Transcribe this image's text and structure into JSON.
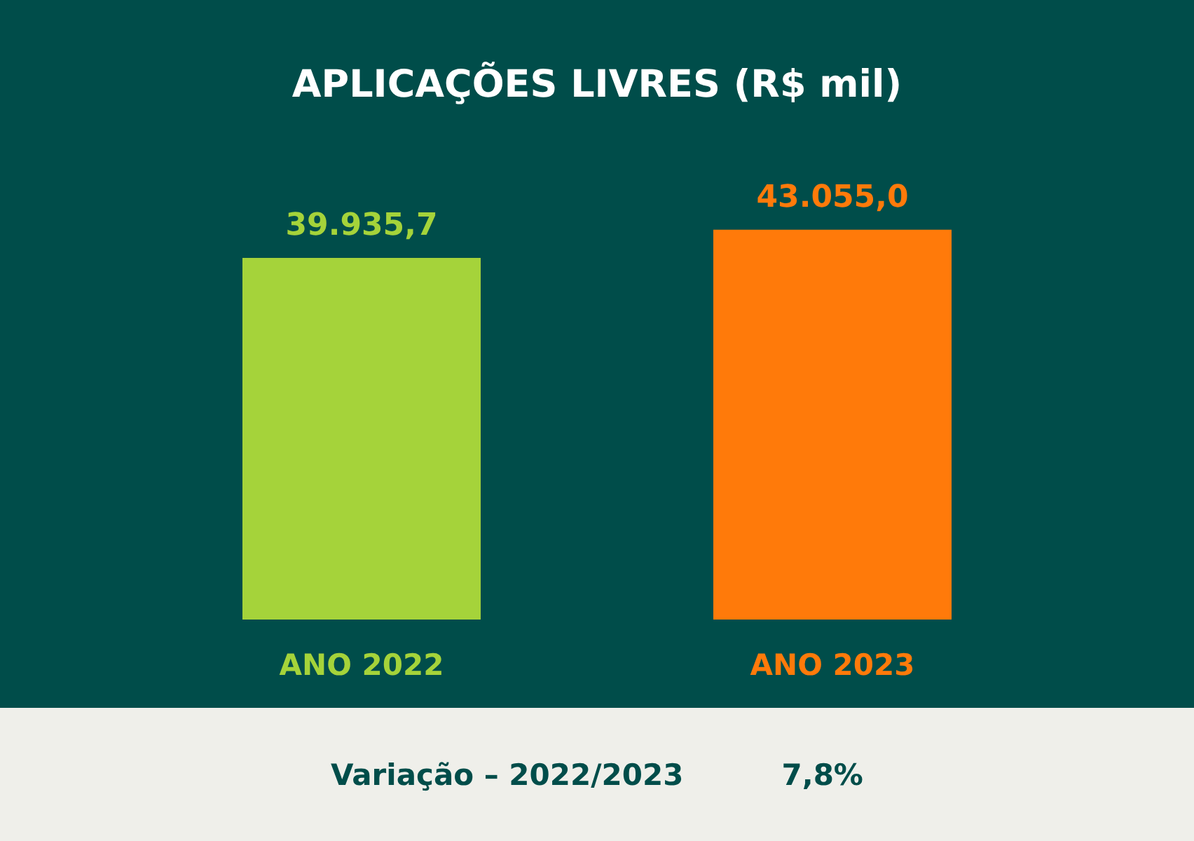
{
  "chart_data": {
    "type": "bar",
    "title": "APLICAÇÕES LIVRES (R$ mil)",
    "categories": [
      "ANO 2022",
      "ANO 2023"
    ],
    "values": [
      39935.7,
      43055.0
    ],
    "colors": [
      "#a5d33a",
      "#ff7a0a"
    ],
    "value_labels": [
      "39.935,7",
      "43.055,0"
    ],
    "grid": false,
    "annotations": [
      "Variação – 2022/2023",
      "7,8%"
    ]
  }
}
